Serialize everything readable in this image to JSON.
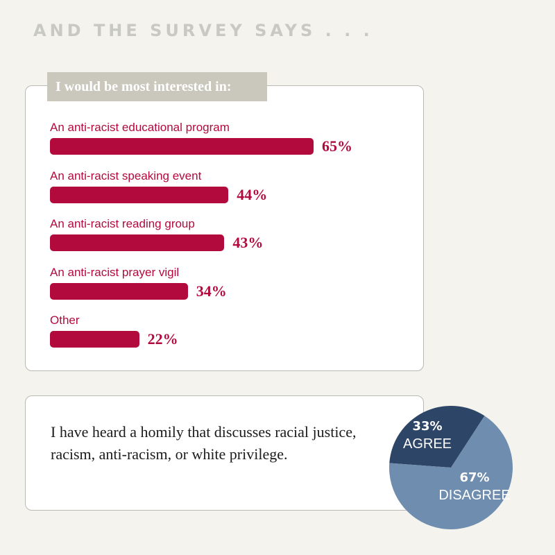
{
  "headline": "AND THE SURVEY SAYS . . .",
  "chart_data": [
    {
      "type": "bar",
      "title": "I would be most interested in:",
      "categories": [
        "An anti-racist educational program",
        "An anti-racist speaking event",
        "An anti-racist reading group",
        "An anti-racist prayer vigil",
        "Other"
      ],
      "values": [
        65,
        44,
        43,
        34,
        22
      ],
      "value_labels": [
        "65%",
        "44%",
        "43%",
        "34%",
        "22%"
      ],
      "color": "#b20a3d"
    },
    {
      "type": "pie",
      "title": "I have heard a homily that discusses racial justice, racism, anti-racism, or white privilege.",
      "slices": [
        {
          "label": "AGREE",
          "value": 33,
          "value_label": "33%",
          "color": "#2d4566"
        },
        {
          "label": "DISAGREE",
          "value": 67,
          "value_label": "67%",
          "color": "#6f8daf"
        }
      ]
    }
  ]
}
